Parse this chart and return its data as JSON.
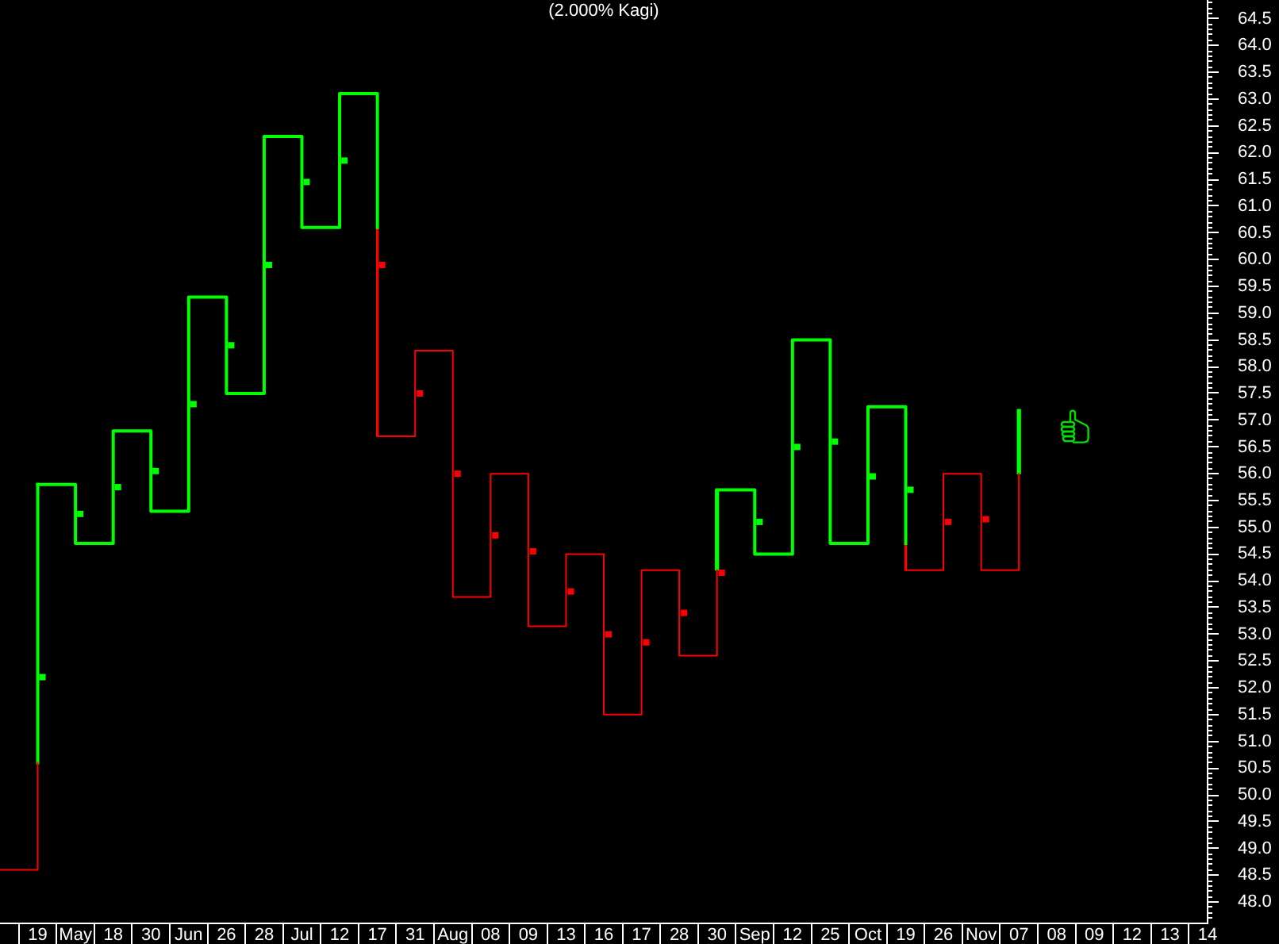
{
  "chart_data": {
    "type": "step",
    "title": "(2.000% Kagi)",
    "categories": [
      null,
      "19",
      "May",
      "18",
      "30",
      "Jun",
      "26",
      "28",
      "Jul",
      "12",
      "17",
      "31",
      "Aug",
      "08",
      "09",
      "13",
      "16",
      "17",
      "28",
      "30",
      "Sep",
      "12",
      "25",
      "Oct",
      "19",
      "26",
      "Nov",
      "07",
      "08",
      "09",
      "12",
      "13",
      "14"
    ],
    "ylim": [
      47.6,
      64.85
    ],
    "yticks": [
      {
        "value": 47.7,
        "label": null
      },
      {
        "value": 47.8,
        "label": null
      },
      {
        "value": 47.9,
        "label": null
      },
      {
        "value": 48,
        "label": "48.0"
      },
      {
        "value": 48.1,
        "label": null
      },
      {
        "value": 48.2,
        "label": null
      },
      {
        "value": 48.3,
        "label": null
      },
      {
        "value": 48.4,
        "label": null
      },
      48.5,
      {
        "value": 48.6,
        "label": null
      },
      {
        "value": 48.7,
        "label": null
      },
      {
        "value": 48.8,
        "label": null
      },
      {
        "value": 48.9,
        "label": null
      },
      {
        "value": 49,
        "label": "49.0"
      },
      {
        "value": 49.1,
        "label": null
      },
      {
        "value": 49.2,
        "label": null
      },
      {
        "value": 49.3,
        "label": null
      },
      {
        "value": 49.4,
        "label": null
      },
      49.5,
      {
        "value": 49.6,
        "label": null
      },
      {
        "value": 49.7,
        "label": null
      },
      {
        "value": 49.8,
        "label": null
      },
      {
        "value": 49.9,
        "label": null
      },
      {
        "value": 50,
        "label": "50.0"
      },
      {
        "value": 50.1,
        "label": null
      },
      {
        "value": 50.2,
        "label": null
      },
      {
        "value": 50.3,
        "label": null
      },
      {
        "value": 50.4,
        "label": null
      },
      50.5,
      {
        "value": 50.6,
        "label": null
      },
      {
        "value": 50.7,
        "label": null
      },
      {
        "value": 50.8,
        "label": null
      },
      {
        "value": 50.9,
        "label": null
      },
      {
        "value": 51,
        "label": "51.0"
      },
      {
        "value": 51.1,
        "label": null
      },
      {
        "value": 51.2,
        "label": null
      },
      {
        "value": 51.3,
        "label": null
      },
      {
        "value": 51.4,
        "label": null
      },
      51.5,
      {
        "value": 51.6,
        "label": null
      },
      {
        "value": 51.7,
        "label": null
      },
      {
        "value": 51.8,
        "label": null
      },
      {
        "value": 51.9,
        "label": null
      },
      {
        "value": 52,
        "label": "52.0"
      },
      {
        "value": 52.1,
        "label": null
      },
      {
        "value": 52.2,
        "label": null
      },
      {
        "value": 52.3,
        "label": null
      },
      {
        "value": 52.4,
        "label": null
      },
      52.5,
      {
        "value": 52.6,
        "label": null
      },
      {
        "value": 52.7,
        "label": null
      },
      {
        "value": 52.8,
        "label": null
      },
      {
        "value": 52.9,
        "label": null
      },
      {
        "value": 53,
        "label": "53.0"
      },
      {
        "value": 53.1,
        "label": null
      },
      {
        "value": 53.2,
        "label": null
      },
      {
        "value": 53.3,
        "label": null
      },
      {
        "value": 53.4,
        "label": null
      },
      53.5,
      {
        "value": 53.6,
        "label": null
      },
      {
        "value": 53.7,
        "label": null
      },
      {
        "value": 53.8,
        "label": null
      },
      {
        "value": 53.9,
        "label": null
      },
      {
        "value": 54,
        "label": "54.0"
      },
      {
        "value": 54.1,
        "label": null
      },
      {
        "value": 54.2,
        "label": null
      },
      {
        "value": 54.3,
        "label": null
      },
      {
        "value": 54.4,
        "label": null
      },
      54.5,
      {
        "value": 54.6,
        "label": null
      },
      {
        "value": 54.7,
        "label": null
      },
      {
        "value": 54.8,
        "label": null
      },
      {
        "value": 54.9,
        "label": null
      },
      {
        "value": 55,
        "label": "55.0"
      },
      {
        "value": 55.1,
        "label": null
      },
      {
        "value": 55.2,
        "label": null
      },
      {
        "value": 55.3,
        "label": null
      },
      {
        "value": 55.4,
        "label": null
      },
      55.5,
      {
        "value": 55.6,
        "label": null
      },
      {
        "value": 55.7,
        "label": null
      },
      {
        "value": 55.8,
        "label": null
      },
      {
        "value": 55.9,
        "label": null
      },
      {
        "value": 56,
        "label": "56.0"
      },
      {
        "value": 56.1,
        "label": null
      },
      {
        "value": 56.2,
        "label": null
      },
      {
        "value": 56.3,
        "label": null
      },
      {
        "value": 56.4,
        "label": null
      },
      56.5,
      {
        "value": 56.6,
        "label": null
      },
      {
        "value": 56.7,
        "label": null
      },
      {
        "value": 56.8,
        "label": null
      },
      {
        "value": 56.9,
        "label": null
      },
      {
        "value": 57,
        "label": "57.0"
      },
      {
        "value": 57.1,
        "label": null
      },
      {
        "value": 57.2,
        "label": null
      },
      {
        "value": 57.3,
        "label": null
      },
      {
        "value": 57.4,
        "label": null
      },
      57.5,
      {
        "value": 57.6,
        "label": null
      },
      {
        "value": 57.7,
        "label": null
      },
      {
        "value": 57.8,
        "label": null
      },
      {
        "value": 57.9,
        "label": null
      },
      {
        "value": 58,
        "label": "58.0"
      },
      {
        "value": 58.1,
        "label": null
      },
      {
        "value": 58.2,
        "label": null
      },
      {
        "value": 58.3,
        "label": null
      },
      {
        "value": 58.4,
        "label": null
      },
      58.5,
      {
        "value": 58.6,
        "label": null
      },
      {
        "value": 58.7,
        "label": null
      },
      {
        "value": 58.8,
        "label": null
      },
      {
        "value": 58.9,
        "label": null
      },
      {
        "value": 59,
        "label": "59.0"
      },
      {
        "value": 59.1,
        "label": null
      },
      {
        "value": 59.2,
        "label": null
      },
      {
        "value": 59.3,
        "label": null
      },
      {
        "value": 59.4,
        "label": null
      },
      59.5,
      {
        "value": 59.6,
        "label": null
      },
      {
        "value": 59.7,
        "label": null
      },
      {
        "value": 59.8,
        "label": null
      },
      {
        "value": 59.9,
        "label": null
      },
      {
        "value": 60,
        "label": "60.0"
      },
      {
        "value": 60.1,
        "label": null
      },
      {
        "value": 60.2,
        "label": null
      },
      {
        "value": 60.3,
        "label": null
      },
      {
        "value": 60.4,
        "label": null
      },
      60.5,
      {
        "value": 60.6,
        "label": null
      },
      {
        "value": 60.7,
        "label": null
      },
      {
        "value": 60.8,
        "label": null
      },
      {
        "value": 60.9,
        "label": null
      },
      {
        "value": 61,
        "label": "61.0"
      },
      {
        "value": 61.1,
        "label": null
      },
      {
        "value": 61.2,
        "label": null
      },
      {
        "value": 61.3,
        "label": null
      },
      {
        "value": 61.4,
        "label": null
      },
      61.5,
      {
        "value": 61.6,
        "label": null
      },
      {
        "value": 61.7,
        "label": null
      },
      {
        "value": 61.8,
        "label": null
      },
      {
        "value": 61.9,
        "label": null
      },
      {
        "value": 62,
        "label": "62.0"
      },
      {
        "value": 62.1,
        "label": null
      },
      {
        "value": 62.2,
        "label": null
      },
      {
        "value": 62.3,
        "label": null
      },
      {
        "value": 62.4,
        "label": null
      },
      62.5,
      {
        "value": 62.6,
        "label": null
      },
      {
        "value": 62.7,
        "label": null
      },
      {
        "value": 62.8,
        "label": null
      },
      {
        "value": 62.9,
        "label": null
      },
      {
        "value": 63,
        "label": "63.0"
      },
      {
        "value": 63.1,
        "label": null
      },
      {
        "value": 63.2,
        "label": null
      },
      {
        "value": 63.3,
        "label": null
      },
      {
        "value": 63.4,
        "label": null
      },
      63.5,
      {
        "value": 63.6,
        "label": null
      },
      {
        "value": 63.7,
        "label": null
      },
      {
        "value": 63.8,
        "label": null
      },
      {
        "value": 63.9,
        "label": null
      },
      {
        "value": 64,
        "label": "64.0"
      },
      {
        "value": 64.1,
        "label": null
      },
      {
        "value": 64.2,
        "label": null
      },
      {
        "value": 64.3,
        "label": null
      },
      {
        "value": 64.4,
        "label": null
      },
      64.5,
      {
        "value": 64.6,
        "label": null
      },
      {
        "value": 64.7,
        "label": null
      },
      {
        "value": 64.8,
        "label": null
      }
    ],
    "series": [
      {
        "color": "#00ff00",
        "values": [
          null,
          55.8,
          54.7,
          56.8,
          55.3,
          59.3,
          57.5,
          62.3,
          60.6,
          63.1,
          60.6,
          null,
          null,
          null,
          null,
          null,
          null,
          null,
          null,
          55.7,
          54.5,
          58.5,
          54.7,
          57.25,
          54.7,
          null,
          null,
          null,
          null,
          null,
          null,
          null,
          null
        ]
      },
      {
        "color": "#ff0000",
        "values": [
          48.6,
          50.6,
          null,
          null,
          null,
          null,
          null,
          null,
          null,
          null,
          56.7,
          58.3,
          53.7,
          56.0,
          53.15,
          54.5,
          51.5,
          54.2,
          52.6,
          54.2,
          null,
          null,
          null,
          null,
          54.2,
          56.0,
          54.2,
          56.0,
          null,
          null,
          null,
          null,
          null
        ]
      },
      {
        "type": "scatter",
        "marker": "square",
        "color": "#00ff00",
        "values": [
          null,
          52.2,
          55.25,
          55.75,
          56.05,
          57.3,
          58.4,
          59.9,
          61.45,
          61.85,
          null,
          null,
          null,
          null,
          null,
          null,
          null,
          null,
          null,
          null,
          55.1,
          56.5,
          56.6,
          55.95,
          55.7,
          null,
          null,
          null,
          null,
          null,
          null,
          null,
          null
        ]
      },
      {
        "type": "scatter",
        "marker": "square",
        "color": "#ff0000",
        "values": [
          null,
          null,
          null,
          null,
          null,
          null,
          null,
          null,
          null,
          null,
          59.9,
          57.5,
          56.0,
          54.85,
          54.55,
          53.8,
          53.0,
          52.85,
          53.4,
          54.15,
          null,
          null,
          null,
          null,
          null,
          55.1,
          55.15,
          null,
          null,
          null,
          null,
          null,
          null
        ]
      },
      {
        "type": "bar",
        "color": "#00ff00",
        "base": [
          null,
          null,
          null,
          null,
          null,
          null,
          null,
          null,
          null,
          null,
          null,
          null,
          null,
          null,
          null,
          null,
          null,
          null,
          null,
          54.2,
          null,
          null,
          null,
          null,
          null,
          null,
          null,
          56.0,
          null,
          null,
          null,
          null,
          null
        ],
        "values": [
          null,
          null,
          null,
          null,
          null,
          null,
          null,
          null,
          null,
          null,
          null,
          null,
          null,
          null,
          null,
          null,
          null,
          null,
          null,
          1.5,
          null,
          null,
          null,
          null,
          null,
          null,
          null,
          1.2,
          null,
          null,
          null,
          null,
          null
        ]
      },
      {
        "type": "bar",
        "color": "#ff0000",
        "base": [
          null,
          null,
          null,
          null,
          null,
          null,
          null,
          null,
          null,
          null,
          60.6,
          null,
          null,
          null,
          null,
          null,
          null,
          null,
          null,
          null,
          null,
          null,
          null,
          null,
          54.7,
          null,
          null,
          null,
          null,
          null,
          null,
          null,
          null
        ],
        "values": [
          null,
          null,
          null,
          null,
          null,
          null,
          null,
          null,
          null,
          null,
          -3.9,
          null,
          null,
          null,
          null,
          null,
          null,
          null,
          null,
          null,
          null,
          null,
          null,
          null,
          -0.5,
          null,
          null,
          null,
          null,
          null,
          null,
          null,
          null
        ]
      },
      {
        "type": "line",
        "color": "#00ff00",
        "x": [
          "19",
          "19"
        ],
        "values": [
          50.6,
          55.8
        ]
      }
    ]
  }
}
